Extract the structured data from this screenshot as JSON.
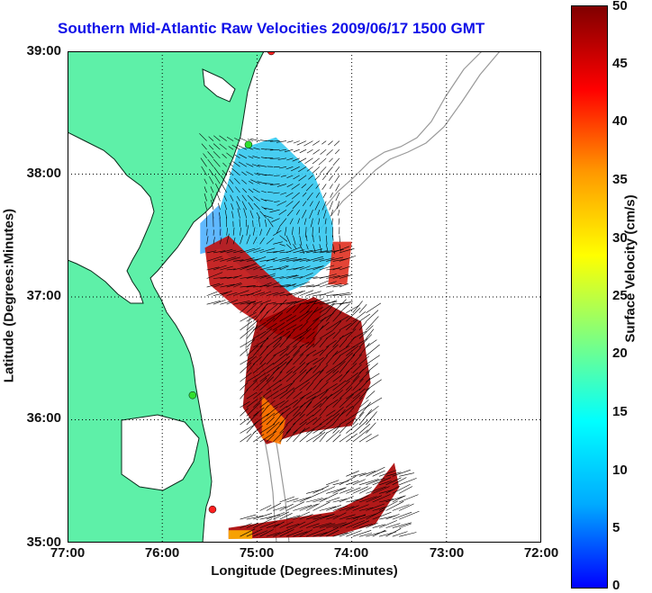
{
  "title": "Southern Mid-Atlantic Raw Velocities 2009/06/17 1500 GMT",
  "x_axis": {
    "label": "Longitude (Degrees:Minutes)",
    "ticks": [
      "77:00",
      "76:00",
      "75:00",
      "74:00",
      "73:00",
      "72:00"
    ]
  },
  "y_axis": {
    "label": "Latitude (Degrees:Minutes)",
    "ticks": [
      "39:00",
      "38:00",
      "37:00",
      "36:00",
      "35:00"
    ]
  },
  "colorbar": {
    "label": "Surface Velocity (cm/s)",
    "ticks": [
      "50",
      "45",
      "40",
      "35",
      "30",
      "25",
      "20",
      "15",
      "10",
      "5",
      "0"
    ],
    "min": 0,
    "max": 50,
    "colors": [
      "#0000ff",
      "#00aaff",
      "#00ffff",
      "#7fff7f",
      "#ffff00",
      "#ff9900",
      "#ff0000",
      "#800000"
    ]
  },
  "map": {
    "lon_range": [
      -77,
      -72
    ],
    "lat_range": [
      35,
      39
    ],
    "land_color": "#5ef0a8",
    "bathymetry_color": "#999999",
    "grid": true,
    "station_markers": [
      {
        "color": "#ff2020",
        "lon": -74.85,
        "lat": 39.0
      },
      {
        "color": "#30e030",
        "lon": -75.09,
        "lat": 38.24
      },
      {
        "color": "#30e030",
        "lon": -75.68,
        "lat": 36.2
      },
      {
        "color": "#ff2020",
        "lon": -75.47,
        "lat": 35.27
      }
    ]
  }
}
